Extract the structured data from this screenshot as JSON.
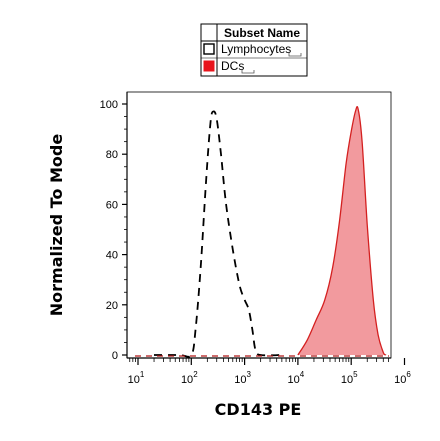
{
  "chart_data": {
    "type": "area",
    "title": "",
    "xlabel": "CD143 PE",
    "ylabel": "Normalized To Mode",
    "xscale": "log",
    "xlim": [
      1,
      1000000
    ],
    "ylim": [
      0,
      100
    ],
    "x_ticks": [
      {
        "base": "10",
        "exp": "1",
        "value": 10
      },
      {
        "base": "10",
        "exp": "2",
        "value": 100
      },
      {
        "base": "10",
        "exp": "3",
        "value": 1000
      },
      {
        "base": "10",
        "exp": "4",
        "value": 10000
      },
      {
        "base": "10",
        "exp": "5",
        "value": 100000
      },
      {
        "base": "10",
        "exp": "6",
        "value": 1000000
      }
    ],
    "y_ticks": [
      {
        "label": "0",
        "value": 0
      },
      {
        "label": "20",
        "value": 20
      },
      {
        "label": "40",
        "value": 40
      },
      {
        "label": "60",
        "value": 60
      },
      {
        "label": "80",
        "value": 80
      },
      {
        "label": "100",
        "value": 100
      }
    ],
    "legend": {
      "header": "Subset Name",
      "placement": "top-center"
    },
    "series": [
      {
        "name": "Lymphocytes",
        "style": "dashed",
        "color": "#000000",
        "fill": "none",
        "points": [
          [
            20,
            0
          ],
          [
            60,
            0
          ],
          [
            100,
            0
          ],
          [
            120,
            10
          ],
          [
            150,
            35
          ],
          [
            190,
            70
          ],
          [
            230,
            93
          ],
          [
            260,
            97
          ],
          [
            300,
            94
          ],
          [
            360,
            80
          ],
          [
            450,
            60
          ],
          [
            600,
            42
          ],
          [
            800,
            28
          ],
          [
            1000,
            22
          ],
          [
            1200,
            18
          ],
          [
            1400,
            10
          ],
          [
            1600,
            2
          ],
          [
            2000,
            0
          ],
          [
            5000,
            0
          ]
        ]
      },
      {
        "name": "DCs",
        "style": "solid",
        "color": "#d42020",
        "fill": "#f29a9e",
        "points": [
          [
            10000,
            0
          ],
          [
            15000,
            6
          ],
          [
            22000,
            14
          ],
          [
            32000,
            22
          ],
          [
            45000,
            35
          ],
          [
            60000,
            53
          ],
          [
            80000,
            76
          ],
          [
            100000,
            89
          ],
          [
            120000,
            97
          ],
          [
            135000,
            98
          ],
          [
            160000,
            85
          ],
          [
            200000,
            52
          ],
          [
            260000,
            22
          ],
          [
            320000,
            8
          ],
          [
            400000,
            1
          ],
          [
            450000,
            0
          ]
        ]
      }
    ]
  }
}
